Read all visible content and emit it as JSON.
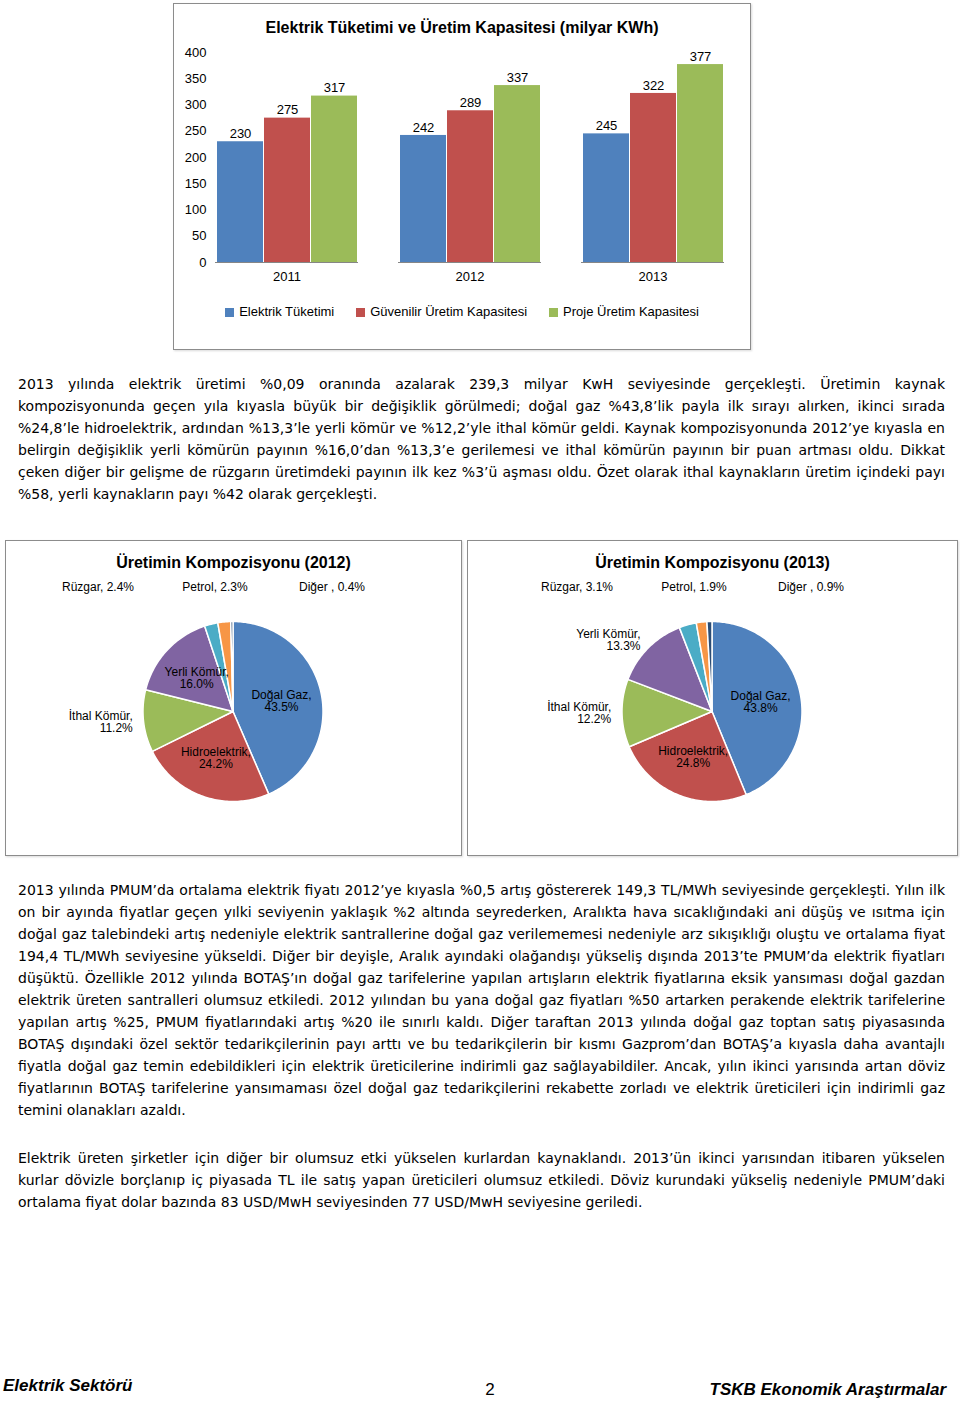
{
  "chart_data": [
    {
      "type": "bar",
      "title": "Elektrik Tüketimi ve Üretim Kapasitesi (milyar KWh)",
      "categories": [
        "2011",
        "2012",
        "2013"
      ],
      "series": [
        {
          "name": "Elektrik Tüketimi",
          "color": "#4f81bd",
          "values": [
            230,
            242,
            245
          ]
        },
        {
          "name": "Güvenilir Üretim Kapasitesi",
          "color": "#c0504d",
          "values": [
            275,
            289,
            322
          ]
        },
        {
          "name": "Proje Üretim Kapasitesi",
          "color": "#9bbb59",
          "values": [
            317,
            337,
            377
          ]
        }
      ],
      "ylim": [
        0,
        400
      ],
      "yticks": [
        0,
        50,
        100,
        150,
        200,
        250,
        300,
        350,
        400
      ],
      "data_labels": true,
      "legend": "bottom"
    },
    {
      "type": "pie",
      "title": "Üretimin Kompozisyonu (2012)",
      "categories": [
        "Doğal Gaz",
        "Hidroelektrik",
        "İthal Kömür",
        "Yerli Kömür",
        "Rüzgar",
        "Petrol",
        "Diğer"
      ],
      "values": [
        43.5,
        24.2,
        11.2,
        16.0,
        2.4,
        2.3,
        0.4
      ],
      "value_labels": [
        "Doğal Gaz, 43.5%",
        "Hidroelektrik, 24.2%",
        "İthal Kömür, 11.2%",
        "Yerli Kömür, 16.0%",
        "Rüzgar, 2.4%",
        "Petrol, 2.3%",
        "Diğer , 0.4%"
      ],
      "colors": [
        "#4f81bd",
        "#c0504d",
        "#9bbb59",
        "#8064a2",
        "#4bacc6",
        "#f79646",
        "#2c4d75"
      ],
      "data_labels": true
    },
    {
      "type": "pie",
      "title": "Üretimin Kompozisyonu (2013)",
      "categories": [
        "Doğal Gaz",
        "Hidroelektrik",
        "İthal Kömür",
        "Yerli Kömür",
        "Rüzgar",
        "Petrol",
        "Diğer"
      ],
      "values": [
        43.8,
        24.8,
        12.2,
        13.3,
        3.1,
        1.9,
        0.9
      ],
      "value_labels": [
        "Doğal Gaz, 43.8%",
        "Hidroelektrik, 24.8%",
        "İthal Kömür, 12.2%",
        "Yerli Kömür, 13.3%",
        "Rüzgar, 3.1%",
        "Petrol, 1.9%",
        "Diğer , 0.9%"
      ],
      "colors": [
        "#4f81bd",
        "#c0504d",
        "#9bbb59",
        "#8064a2",
        "#4bacc6",
        "#f79646",
        "#2c4d75"
      ],
      "data_labels": true
    }
  ],
  "paragraphs": [
    "2013 yılında elektrik üretimi %0,09 oranında azalarak 239,3 milyar KwH seviyesinde gerçekleşti. Üretimin kaynak kompozisyonunda geçen yıla kıyasla büyük bir değişiklik görülmedi; doğal gaz %43,8’lik payla ilk sırayı alırken, ikinci sırada %24,8’le hidroelektrik, ardından %13,3’le yerli kömür ve %12,2’yle ithal kömür geldi. Kaynak kompozisyonunda 2012’ye kıyasla en belirgin değişiklik yerli kömürün payının %16,0’dan %13,3’e gerilemesi ve ithal kömürün payının bir puan artması oldu. Dikkat çeken diğer bir gelişme de rüzgarın üretimdeki payının ilk kez %3’ü aşması oldu. Özet olarak ithal kaynakların üretim içindeki payı %58, yerli kaynakların payı %42 olarak gerçekleşti.",
    "2013 yılında PMUM’da ortalama elektrik fiyatı 2012’ye kıyasla %0,5 artış göstererek 149,3 TL/MWh seviyesinde gerçekleşti. Yılın ilk on bir ayında fiyatlar geçen yılki seviyenin yaklaşık %2 altında seyrederken, Aralıkta hava sıcaklığındaki ani düşüş ve ısıtma için doğal gaz talebindeki artış nedeniyle elektrik santrallerine doğal gaz verilememesi nedeniyle arz sıkışıklığı oluştu ve ortalama fiyat 194,4 TL/MWh seviyesine yükseldi. Diğer bir deyişle, Aralık ayındaki olağandışı yükseliş dışında 2013’te PMUM’da elektrik fiyatları düşüktü. Özellikle 2012 yılında BOTAŞ’ın doğal gaz tarifelerine yapılan artışların elektrik fiyatlarına eksik yansıması doğal gazdan elektrik üreten santralleri olumsuz etkiledi. 2012 yılından bu yana doğal gaz fiyatları %50 artarken perakende elektrik tarifelerine yapılan artış %25, PMUM fiyatlarındaki artış %20 ile sınırlı kaldı. Diğer taraftan 2013 yılında doğal gaz toptan satış piyasasında BOTAŞ dışındaki özel sektör tedarikçilerinin payı arttı ve bu tedarikçilerin bir kısmı Gazprom’dan BOTAŞ’a kıyasla daha avantajlı fiyatla doğal gaz temin edebildikleri için elektrik üreticilerine indirimli gaz sağlayabildiler. Ancak, yılın ikinci yarısında artan döviz fiyatlarının BOTAŞ tarifelerine yansımaması özel doğal gaz tedarikçilerini rekabette zorladı ve elektrik üreticileri için indirimli gaz temini olanakları azaldı.",
    "Elektrik üreten şirketler için diğer bir olumsuz etki yükselen kurlardan kaynaklandı. 2013’ün ikinci yarısından itibaren yükselen kurlar dövizle borçlanıp iç piyasada TL ile satış yapan üreticileri olumsuz etkiledi. Döviz kurundaki yükseliş nedeniyle PMUM’daki ortalama fiyat dolar bazında 83 USD/MwH seviyesinden 77 USD/MwH seviyesine geriledi."
  ],
  "footer": {
    "left": "Elektrik Sektörü",
    "page": "2",
    "right": "TSKB Ekonomik Araştırmalar"
  }
}
